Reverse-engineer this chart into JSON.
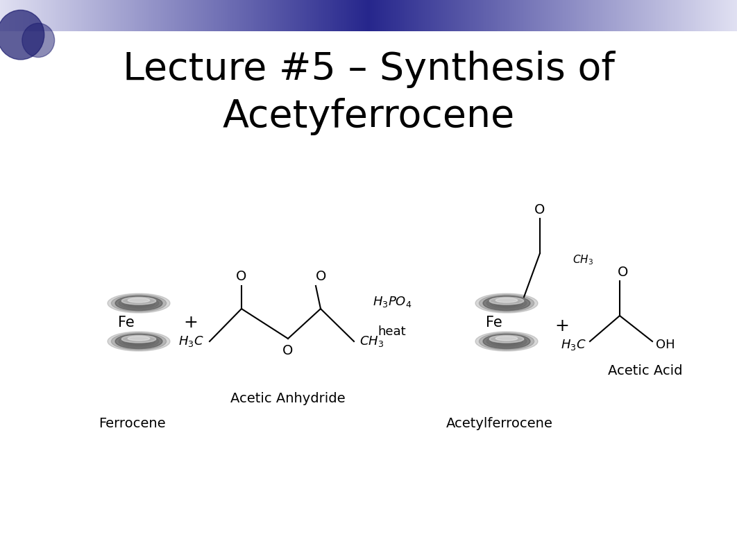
{
  "title_line1": "Lecture #5 – Synthesis of",
  "title_line2": "Acetyferrocene",
  "title_fontsize": 40,
  "bg_color": "#ffffff",
  "ferrocene_label": "Ferrocene",
  "acetic_anhydride_label": "Acetic Anhydride",
  "acetylferrocene_label": "Acetylferrocene",
  "acetic_acid_label": "Acetic Acid",
  "h3po4_text": "H$_3$PO$_4$",
  "heat_text": "heat"
}
